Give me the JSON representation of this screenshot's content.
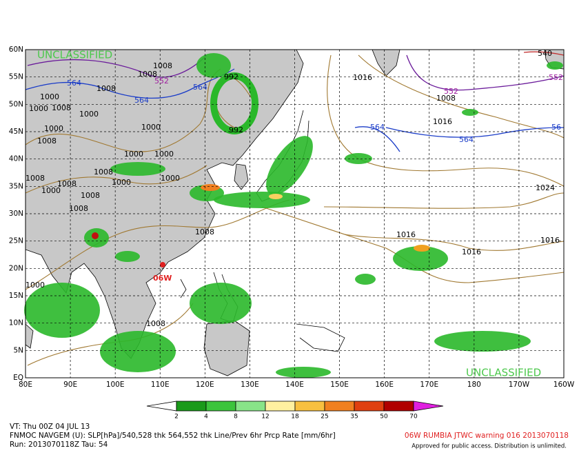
{
  "map": {
    "classification_top": "UNCLASSIFIED",
    "classification_bottom": "UNCLASSIFIED",
    "lat_labels": [
      "60N",
      "55N",
      "50N",
      "45N",
      "40N",
      "35N",
      "30N",
      "25N",
      "20N",
      "15N",
      "10N",
      "5N",
      "EQ"
    ],
    "lon_labels": [
      "80E",
      "90E",
      "100E",
      "110E",
      "120E",
      "130E",
      "140E",
      "150E",
      "160E",
      "170E",
      "180",
      "170W",
      "160W"
    ],
    "storm_label": "06W",
    "contour_labels": [
      "1008",
      "1008",
      "1000",
      "1008",
      "1000",
      "1000",
      "1008",
      "1000",
      "1000",
      "1000",
      "1008",
      "1008",
      "1000",
      "1008",
      "1008",
      "1008",
      "1000",
      "1000",
      "1000",
      "1008",
      "1008",
      "1008",
      "1000",
      "992",
      "992",
      "1016",
      "1008",
      "1016",
      "1024",
      "1016",
      "1016",
      "1016"
    ],
    "thickness_labels": [
      "564",
      "564",
      "564",
      "564",
      "564",
      "56",
      "552",
      "552",
      "540",
      "552"
    ]
  },
  "colorbar": {
    "labels": [
      "2",
      "4",
      "8",
      "12",
      "18",
      "25",
      "35",
      "50",
      "70"
    ]
  },
  "footer": {
    "valid_time": "VT: Thu 00Z 04 JUL 13",
    "description": "FNMOC NAVGEM (U): SLP[hPa]/540,528 thk 564,552 thk Line/Prev 6hr Prcp Rate [mm/6hr]",
    "run": "Run: 2013070118Z Tau: 54",
    "warning": "06W RUMBIA JTWC warning 016 2013070118",
    "release": "Approved for public access. Distribution is unlimited."
  }
}
